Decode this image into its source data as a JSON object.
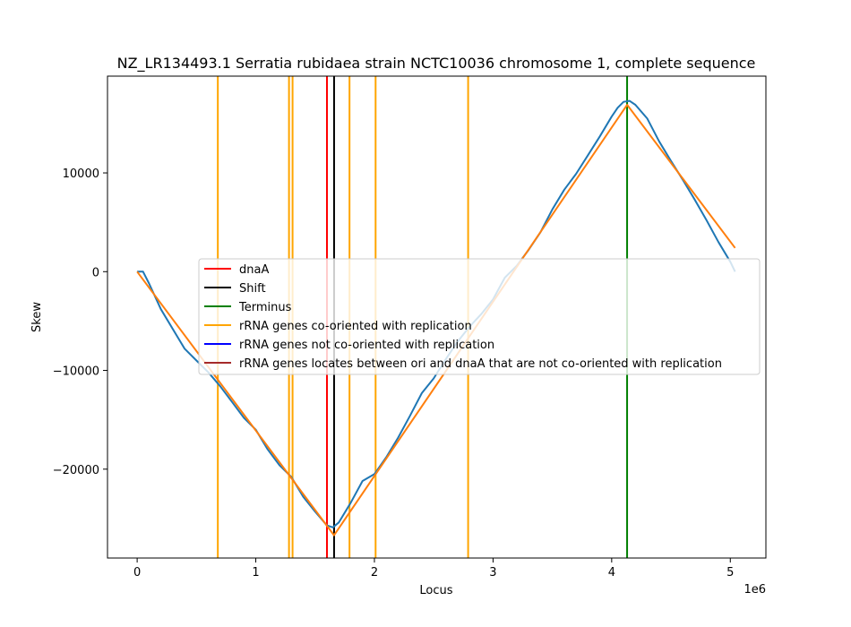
{
  "chart_data": {
    "type": "line",
    "title": "NZ_LR134493.1 Serratia rubidaea strain NCTC10036 chromosome 1, complete sequence",
    "xlabel": "Locus",
    "ylabel": "Skew",
    "x_offset_label": "1e6",
    "xlim": [
      -250000,
      5300000
    ],
    "ylim": [
      -29000,
      19800
    ],
    "x_ticks": [
      {
        "value": 0,
        "label": "0"
      },
      {
        "value": 1000000,
        "label": "1"
      },
      {
        "value": 2000000,
        "label": "2"
      },
      {
        "value": 3000000,
        "label": "3"
      },
      {
        "value": 4000000,
        "label": "4"
      },
      {
        "value": 5000000,
        "label": "5"
      }
    ],
    "y_ticks": [
      {
        "value": -20000,
        "label": "−20000"
      },
      {
        "value": -10000,
        "label": "−10000"
      },
      {
        "value": 0,
        "label": "0"
      },
      {
        "value": 10000,
        "label": "10000"
      }
    ],
    "grid": false,
    "legend_position": "center",
    "series": [
      {
        "color": "#1f77b4",
        "x": [
          0,
          50000,
          100000,
          200000,
          300000,
          400000,
          500000,
          600000,
          700000,
          800000,
          900000,
          1000000,
          1100000,
          1200000,
          1300000,
          1400000,
          1500000,
          1600000,
          1650000,
          1700000,
          1800000,
          1900000,
          2000000,
          2100000,
          2200000,
          2300000,
          2400000,
          2500000,
          2600000,
          2700000,
          2800000,
          2900000,
          3000000,
          3100000,
          3200000,
          3300000,
          3400000,
          3500000,
          3600000,
          3700000,
          3800000,
          3900000,
          4000000,
          4050000,
          4100000,
          4150000,
          4200000,
          4300000,
          4400000,
          4500000,
          4600000,
          4700000,
          4800000,
          4900000,
          5000000,
          5040000
        ],
        "y": [
          0,
          0,
          -1200,
          -3800,
          -5800,
          -7800,
          -9000,
          -10200,
          -11600,
          -13200,
          -14800,
          -16000,
          -18000,
          -19600,
          -20800,
          -22800,
          -24300,
          -25700,
          -25900,
          -25400,
          -23400,
          -21200,
          -20500,
          -18800,
          -16800,
          -14600,
          -12300,
          -10800,
          -8900,
          -7100,
          -5600,
          -4300,
          -2800,
          -600,
          600,
          2200,
          4000,
          6300,
          8300,
          9900,
          11800,
          13700,
          15700,
          16600,
          17200,
          17300,
          16900,
          15500,
          13200,
          11200,
          9300,
          7300,
          5200,
          3000,
          1000,
          0
        ]
      },
      {
        "color": "#ff7f0e",
        "x": [
          0,
          1660000,
          4130000,
          5040000
        ],
        "y": [
          0,
          -26700,
          16900,
          2400
        ]
      }
    ],
    "vertical_lines": [
      {
        "x": 1600000,
        "color": "#ff0000",
        "series": "dnaA"
      },
      {
        "x": 1660000,
        "color": "#000000",
        "series": "Shift"
      },
      {
        "x": 4130000,
        "color": "#008000",
        "series": "Terminus"
      },
      {
        "x": 680000,
        "color": "#ffa500",
        "series": "rRNA genes co-oriented with replication"
      },
      {
        "x": 1280000,
        "color": "#ffa500",
        "series": "rRNA genes co-oriented with replication"
      },
      {
        "x": 1310000,
        "color": "#ffa500",
        "series": "rRNA genes co-oriented with replication"
      },
      {
        "x": 1790000,
        "color": "#ffa500",
        "series": "rRNA genes co-oriented with replication"
      },
      {
        "x": 2010000,
        "color": "#ffa500",
        "series": "rRNA genes co-oriented with replication"
      },
      {
        "x": 2790000,
        "color": "#ffa500",
        "series": "rRNA genes co-oriented with replication"
      }
    ],
    "legend": [
      {
        "label": "dnaA",
        "color": "#ff0000"
      },
      {
        "label": "Shift",
        "color": "#000000"
      },
      {
        "label": "Terminus",
        "color": "#008000"
      },
      {
        "label": "rRNA genes co-oriented with replication",
        "color": "#ffa500"
      },
      {
        "label": "rRNA genes not co-oriented with replication",
        "color": "#0000ff"
      },
      {
        "label": "rRNA genes locates between ori and dnaA that are not co-oriented with replication",
        "color": "#a52a2a"
      }
    ]
  }
}
